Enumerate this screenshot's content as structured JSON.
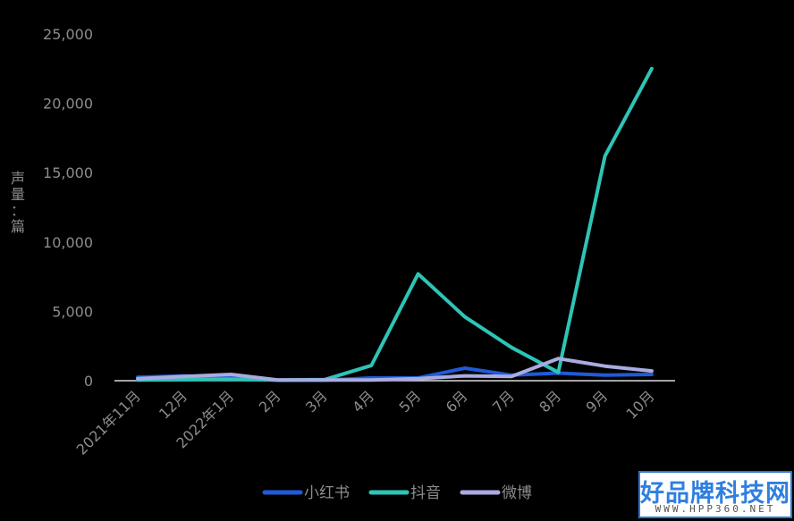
{
  "chart_data": {
    "type": "line",
    "title": "",
    "xlabel": "",
    "ylabel": "声量：篇",
    "categories": [
      "2021年11月",
      "12月",
      "2022年1月",
      "2月",
      "3月",
      "4月",
      "5月",
      "6月",
      "7月",
      "8月",
      "9月",
      "10月"
    ],
    "ylim": [
      0,
      25000
    ],
    "yticks": [
      0,
      5000,
      10000,
      15000,
      20000,
      25000
    ],
    "ytick_labels": [
      "0",
      "5,000",
      "10,000",
      "15,000",
      "20,000",
      "25,000"
    ],
    "grid": false,
    "legend_position": "bottom",
    "series": [
      {
        "name": "小红书",
        "color": "#1f5bd6",
        "values": [
          250,
          350,
          200,
          30,
          30,
          200,
          200,
          900,
          400,
          550,
          400,
          450
        ]
      },
      {
        "name": "抖音",
        "color": "#2ec4b6",
        "values": [
          50,
          80,
          100,
          50,
          80,
          1100,
          7700,
          4600,
          2400,
          600,
          16200,
          22500
        ]
      },
      {
        "name": "微博",
        "color": "#a9abe0",
        "values": [
          150,
          300,
          450,
          50,
          50,
          50,
          150,
          350,
          300,
          1600,
          1050,
          700
        ]
      }
    ]
  },
  "watermark": {
    "title": "好品牌科技网",
    "url": "WWW.HPP360.NET"
  }
}
